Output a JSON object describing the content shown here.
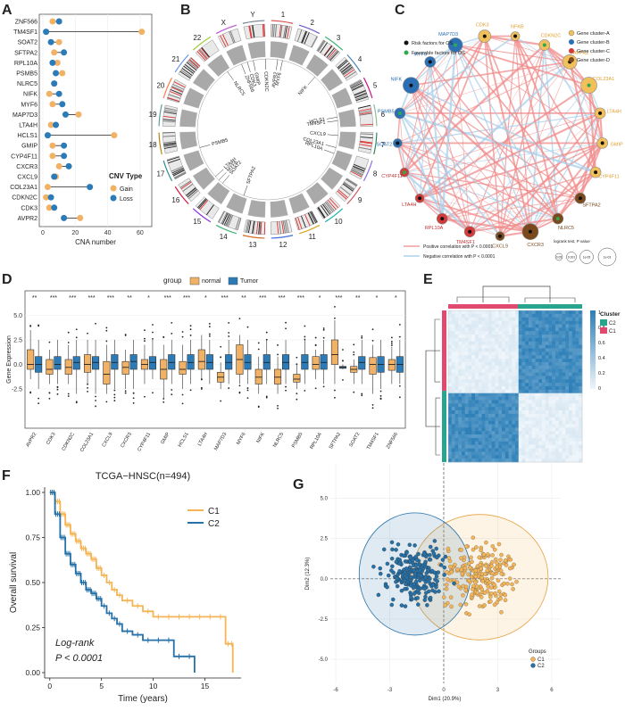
{
  "panels": {
    "A": "A",
    "B": "B",
    "C": "C",
    "D": "D",
    "E": "E",
    "F": "F",
    "G": "G"
  },
  "colors": {
    "gain": "#F2B266",
    "loss": "#2B7BB9",
    "normal": "#F2B266",
    "tumor": "#2B7BB9",
    "c1": "#F5B555",
    "c2": "#2671A8",
    "cluster_c1": "#E04A6F",
    "cluster_c2": "#2AA58D",
    "heat_dark": "#2C7FB8",
    "heat_light": "#EEF4FA"
  },
  "chart_data": [
    {
      "id": "A",
      "type": "dumbbell",
      "xlabel": "CNA number",
      "xticks": [
        0,
        20,
        40,
        60
      ],
      "xlim": [
        0,
        65
      ],
      "legend_title": "CNV Type",
      "legend": [
        "Gain",
        "Loss"
      ],
      "genes": [
        "ZNF566",
        "TM4SF1",
        "SOAT2",
        "SFTPA2",
        "RPL10A",
        "PSMB5",
        "NLRC5",
        "NIFK",
        "MYF6",
        "MAP7D3",
        "LTA4H",
        "HCLS1",
        "GMIP",
        "CYP4F11",
        "CXCR3",
        "CXCL9",
        "COL23A1",
        "CDKN2C",
        "CDK3",
        "AVPR2"
      ],
      "gain": [
        6,
        61,
        10,
        7,
        9,
        12,
        7,
        4,
        6,
        22,
        5,
        44,
        6,
        6,
        10,
        8,
        3,
        2,
        4,
        23
      ],
      "loss": [
        10,
        2,
        5,
        13,
        6,
        8,
        7,
        10,
        12,
        14,
        8,
        3,
        13,
        13,
        16,
        7,
        29,
        5,
        7,
        13
      ]
    },
    {
      "id": "B",
      "type": "circos",
      "chromosomes": [
        "1",
        "2",
        "3",
        "4",
        "5",
        "6",
        "7",
        "8",
        "9",
        "10",
        "11",
        "12",
        "13",
        "14",
        "15",
        "16",
        "17",
        "18",
        "19",
        "20",
        "21",
        "22",
        "X",
        "Y"
      ],
      "gene_labels": [
        "CDKN2C",
        "AVPR2",
        "MYF6",
        "GMIP",
        "CDK3",
        "ZNF566",
        "NLRC5",
        "PSMB5",
        "LTA4H",
        "MYF6",
        "SOAT2",
        "SFTPA2",
        "COL23A1",
        "RPL10A",
        "CXCL9",
        "HCLS1",
        "TM4SF1",
        "NIFK"
      ]
    },
    {
      "id": "C",
      "type": "network",
      "legend_factors": [
        "Risk factors for OS",
        "Favorable factors for OS"
      ],
      "legend_clusters": [
        "Gene cluster-A",
        "Gene cluster-B",
        "Gene cluster-C",
        "Gene cluster-D"
      ],
      "legend_edges": [
        "Positive correlation with P < 0.0001",
        "Negative correlation with P < 0.0001"
      ],
      "legend_size_title": "logrank test, P value",
      "legend_sizes": [
        "0.05",
        "0.001",
        "1e-05",
        "1e-03"
      ],
      "nodes": [
        {
          "name": "CDK3",
          "cluster": "A"
        },
        {
          "name": "NFKB",
          "cluster": "A"
        },
        {
          "name": "CDKN2C",
          "cluster": "A"
        },
        {
          "name": "AVPR2",
          "cluster": "A"
        },
        {
          "name": "COL23A1",
          "cluster": "A"
        },
        {
          "name": "LTA4H",
          "cluster": "A"
        },
        {
          "name": "GMIP",
          "cluster": "A"
        },
        {
          "name": "CYP4F11",
          "cluster": "A"
        },
        {
          "name": "SFTPA2",
          "cluster": "D"
        },
        {
          "name": "NLRC5",
          "cluster": "D"
        },
        {
          "name": "CXCR3",
          "cluster": "D"
        },
        {
          "name": "CXCL9",
          "cluster": "D"
        },
        {
          "name": "TM4SF1",
          "cluster": "C"
        },
        {
          "name": "RPL10A",
          "cluster": "C"
        },
        {
          "name": "LTA4H",
          "cluster": "C"
        },
        {
          "name": "CYP4F11",
          "cluster": "C"
        },
        {
          "name": "SOAT2",
          "cluster": "B"
        },
        {
          "name": "PSMB5",
          "cluster": "B"
        },
        {
          "name": "NIFK",
          "cluster": "B"
        },
        {
          "name": "MYF6",
          "cluster": "B"
        },
        {
          "name": "MAP7D3",
          "cluster": "B"
        }
      ]
    },
    {
      "id": "D",
      "type": "boxplot",
      "legend_title": "group",
      "legend": [
        "normal",
        "Tumor"
      ],
      "ylabel": "Gene Expression",
      "yticks": [
        -2.5,
        0.0,
        2.5,
        5.0
      ],
      "ylim": [
        -6.5,
        7.5
      ],
      "genes": [
        "AVPR2",
        "CDK3",
        "CDKN2C",
        "COL23A1",
        "CXCL9",
        "CXCR3",
        "CYP4F11",
        "GMIP",
        "HCLS1",
        "LTA4H",
        "MAP7D3",
        "MYF6",
        "NIFK",
        "NLRC5",
        "PSMB5",
        "RPL10A",
        "SFTPA2",
        "SOAT2",
        "TM4SF1",
        "ZNF566"
      ],
      "signif": [
        "**",
        "***",
        "***",
        "***",
        "***",
        "**",
        "*",
        "***",
        "***",
        "*",
        "***",
        "**",
        "***",
        "***",
        "***",
        "*",
        "***",
        "**",
        "*",
        "*"
      ],
      "normal": [
        [
          -1.5,
          -0.5,
          0,
          1.5,
          3.5
        ],
        [
          -2,
          -1,
          -0.5,
          0.5,
          1.5
        ],
        [
          -2,
          -1,
          -0.3,
          0.5,
          2
        ],
        [
          -2,
          -0.8,
          0,
          1,
          2.5
        ],
        [
          -3,
          -2,
          -1,
          0.3,
          2
        ],
        [
          -2.5,
          -1,
          -0.3,
          0.3,
          1.5
        ],
        [
          -2,
          -0.5,
          0,
          0.5,
          2
        ],
        [
          -3.5,
          -1.5,
          -0.5,
          0.5,
          2
        ],
        [
          -2.5,
          -1,
          -0.5,
          0.3,
          2
        ],
        [
          -1.5,
          -0.5,
          0.3,
          1.5,
          3
        ],
        [
          -2.5,
          -1.8,
          -1.3,
          -0.8,
          0.2
        ],
        [
          -2,
          -1,
          0.5,
          2,
          3
        ],
        [
          -3,
          -2,
          -1.3,
          -0.5,
          0.8
        ],
        [
          -3,
          -2,
          -1.3,
          -0.5,
          0.8
        ],
        [
          -2.5,
          -1.8,
          -1.5,
          -1,
          0
        ],
        [
          -1.5,
          -0.5,
          0,
          0.8,
          1.5
        ],
        [
          -2,
          0,
          1,
          2.5,
          4.5
        ],
        [
          -2,
          -0.8,
          -0.5,
          -0.2,
          0.5
        ],
        [
          -3,
          -1,
          0,
          0.7,
          2
        ],
        [
          -2,
          -0.6,
          0,
          0.5,
          1.8
        ]
      ],
      "tumor": [
        [
          -2.5,
          -0.8,
          0,
          0.8,
          2.5
        ],
        [
          -2,
          -0.5,
          0,
          0.8,
          2.5
        ],
        [
          -3,
          -0.5,
          0.2,
          0.8,
          2.5
        ],
        [
          -3,
          -0.5,
          0.2,
          0.8,
          2.5
        ],
        [
          -2.5,
          -0.5,
          0.2,
          1,
          2.5
        ],
        [
          -2.5,
          -0.5,
          0.3,
          1,
          2.5
        ],
        [
          -1.5,
          -0.5,
          0.2,
          0.8,
          2.5
        ],
        [
          -2,
          -0.5,
          0.2,
          1,
          2.5
        ],
        [
          -2,
          -0.5,
          0.2,
          1,
          2.5
        ],
        [
          -2,
          -0.5,
          0.2,
          1,
          2.5
        ],
        [
          -2,
          -0.5,
          0.2,
          1,
          2.5
        ],
        [
          -2,
          -0.5,
          0.2,
          1,
          2.5
        ],
        [
          -2,
          -0.5,
          0.2,
          1,
          2.5
        ],
        [
          -2,
          -0.5,
          0.2,
          1,
          2.5
        ],
        [
          -2,
          -0.5,
          0.2,
          1,
          2.5
        ],
        [
          -2,
          -0.5,
          0.2,
          1,
          2.5
        ],
        [
          -0.5,
          -0.4,
          -0.3,
          -0.2,
          0
        ],
        [
          -2,
          -0.5,
          0.2,
          0.8,
          2.5
        ],
        [
          -2.5,
          -0.8,
          0,
          0.8,
          2.5
        ],
        [
          -2,
          -0.8,
          0,
          0.8,
          2.5
        ]
      ]
    },
    {
      "id": "E",
      "type": "heatmap",
      "legend_title": "Cluster",
      "legend": [
        "C2",
        "C1"
      ],
      "scale_ticks": [
        "1",
        "0.8",
        "0.6",
        "0.4",
        "0.2",
        "0"
      ]
    },
    {
      "id": "F",
      "type": "line",
      "title": "TCGA−HNSC(n=494)",
      "xlabel": "Time (years)",
      "ylabel": "Overall survival",
      "xticks": [
        0,
        5,
        10,
        15
      ],
      "yticks": [
        "0.00",
        "0.25",
        "0.50",
        "0.75",
        "1.00"
      ],
      "xlim": [
        -0.5,
        18.5
      ],
      "ylim": [
        0,
        1
      ],
      "annotation_1": "Log-rank",
      "annotation_2": "P < 0.0001",
      "series": [
        {
          "name": "C1",
          "x": [
            0,
            0.5,
            1,
            1.5,
            2,
            2.5,
            3,
            3.5,
            4,
            4.5,
            5,
            5.5,
            6,
            6.5,
            7,
            8,
            9,
            10,
            11,
            12,
            13,
            14,
            15,
            16,
            17,
            17.5,
            17.7
          ],
          "y": [
            1,
            0.95,
            0.88,
            0.82,
            0.77,
            0.73,
            0.69,
            0.66,
            0.63,
            0.58,
            0.54,
            0.5,
            0.46,
            0.43,
            0.4,
            0.37,
            0.34,
            0.31,
            0.31,
            0.31,
            0.31,
            0.31,
            0.31,
            0.31,
            0.16,
            0.16,
            0
          ]
        },
        {
          "name": "C2",
          "x": [
            0,
            0.5,
            1,
            1.5,
            2,
            2.5,
            3,
            3.5,
            4,
            4.5,
            5,
            5.5,
            6,
            6.5,
            7,
            8,
            9,
            10,
            11,
            12,
            13,
            14
          ],
          "y": [
            1,
            0.88,
            0.75,
            0.66,
            0.6,
            0.55,
            0.5,
            0.46,
            0.44,
            0.41,
            0.37,
            0.33,
            0.3,
            0.27,
            0.23,
            0.21,
            0.18,
            0.18,
            0.18,
            0.09,
            0.09,
            0
          ]
        }
      ]
    },
    {
      "id": "G",
      "type": "scatter",
      "xlabel": "Dim1 (20.9%)",
      "ylabel": "Dim2 (12.3%)",
      "xticks": [
        -6,
        -3,
        0,
        3,
        6
      ],
      "yticks": [
        5.0,
        2.5,
        0.0,
        -2.5,
        -5.0
      ],
      "xlim": [
        -6.3,
        6.5
      ],
      "ylim": [
        -6.5,
        7.2
      ],
      "legend_title": "Groups",
      "legend": [
        "C1",
        "C2"
      ],
      "ellipse_c1": {
        "cx": 2.0,
        "cy": 0.1,
        "rx": 3.8,
        "ry": 3.9
      },
      "ellipse_c2": {
        "cx": -1.6,
        "cy": 0.3,
        "rx": 3.1,
        "ry": 3.8
      }
    }
  ]
}
